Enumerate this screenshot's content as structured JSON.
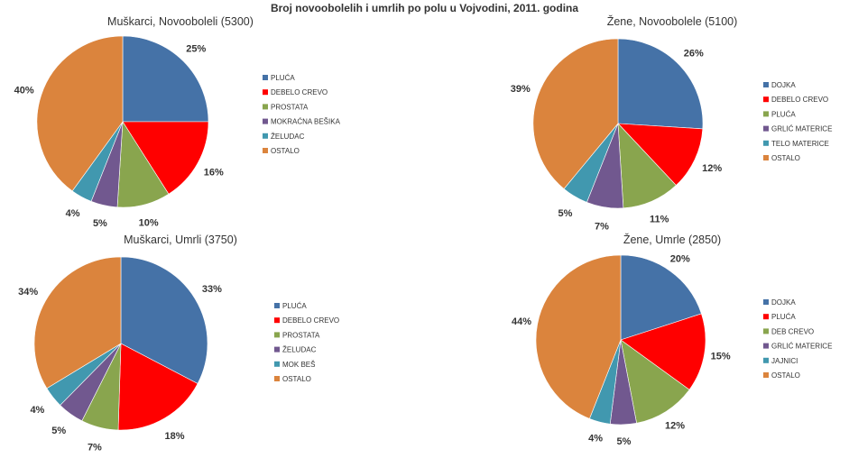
{
  "title": "Broj novoobolelih i umrlih po polu u Vojvodini, 2011. godina",
  "chart_data": [
    {
      "type": "pie",
      "title": "Muškarci, Novoobolel‌i (5300)",
      "slices": [
        {
          "label": "PLUĆA",
          "value": 25,
          "value_label": "25%",
          "color": "#4572a7"
        },
        {
          "label": "DEBELO CREVO",
          "value": 16,
          "value_label": "16%",
          "color": "#ff0000"
        },
        {
          "label": "PROSTATA",
          "value": 10,
          "value_label": "10%",
          "color": "#89a54e"
        },
        {
          "label": "MOKRAĆNA BEŠIKA",
          "value": 5,
          "value_label": "5%",
          "color": "#71588f"
        },
        {
          "label": "ŽELUDAC",
          "value": 4,
          "value_label": "4%",
          "color": "#4198af"
        },
        {
          "label": "OSTALO",
          "value": 40,
          "value_label": "40%",
          "color": "#db843d"
        }
      ]
    },
    {
      "type": "pie",
      "title": "Žene, Novoobolele (5100)",
      "slices": [
        {
          "label": "DOJKA",
          "value": 26,
          "value_label": "26%",
          "color": "#4572a7"
        },
        {
          "label": "DEBELO CREVO",
          "value": 12,
          "value_label": "12%",
          "color": "#ff0000"
        },
        {
          "label": "PLUĆA",
          "value": 11,
          "value_label": "11%",
          "color": "#89a54e"
        },
        {
          "label": "GRLIĆ MATERICE",
          "value": 7,
          "value_label": "7%",
          "color": "#71588f"
        },
        {
          "label": "TELO MATERICE",
          "value": 5,
          "value_label": "5%",
          "color": "#4198af"
        },
        {
          "label": "OSTALO",
          "value": 39,
          "value_label": "39%",
          "color": "#db843d"
        }
      ]
    },
    {
      "type": "pie",
      "title": "Muškarci, Umrli (3750)",
      "slices": [
        {
          "label": "PLUĆA",
          "value": 33,
          "value_label": "33%",
          "color": "#4572a7"
        },
        {
          "label": "DEBELO CREVO",
          "value": 18,
          "value_label": "18%",
          "color": "#ff0000"
        },
        {
          "label": "PROSTATA",
          "value": 7,
          "value_label": "7%",
          "color": "#89a54e"
        },
        {
          "label": "ŽELUDAC",
          "value": 5,
          "value_label": "5%",
          "color": "#71588f"
        },
        {
          "label": "MOK BEŠ",
          "value": 4,
          "value_label": "4%",
          "color": "#4198af"
        },
        {
          "label": "OSTALO",
          "value": 34,
          "value_label": "34%",
          "color": "#db843d"
        }
      ]
    },
    {
      "type": "pie",
      "title": "Žene, Umrle (2850)",
      "slices": [
        {
          "label": "DOJKA",
          "value": 20,
          "value_label": "20%",
          "color": "#4572a7"
        },
        {
          "label": "PLUĆA",
          "value": 15,
          "value_label": "15%",
          "color": "#ff0000"
        },
        {
          "label": "DEB CREVO",
          "value": 12,
          "value_label": "12%",
          "color": "#89a54e"
        },
        {
          "label": "GRLIĆ MATERICE",
          "value": 5,
          "value_label": "5%",
          "color": "#71588f"
        },
        {
          "label": "JAJNICI",
          "value": 4,
          "value_label": "4%",
          "color": "#4198af"
        },
        {
          "label": "OSTALO",
          "value": 44,
          "value_label": "44%",
          "color": "#db843d"
        }
      ]
    }
  ]
}
